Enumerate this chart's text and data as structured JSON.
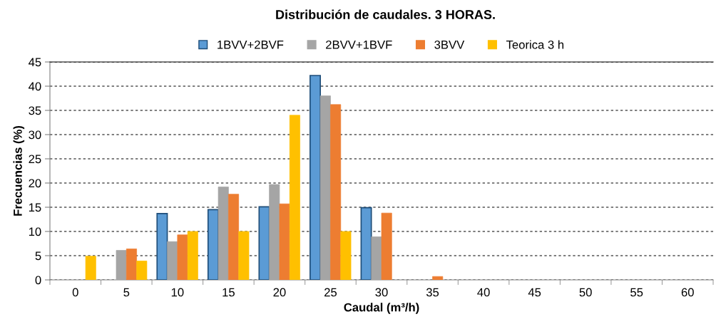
{
  "chart_data": {
    "type": "bar",
    "title": "Distribución de caudales. 3 HORAS.",
    "xlabel": "Caudal (m³/h)",
    "ylabel": "Frecuencias (%)",
    "categories": [
      "0",
      "5",
      "10",
      "15",
      "20",
      "25",
      "30",
      "35",
      "40",
      "45",
      "50",
      "55",
      "60"
    ],
    "series": [
      {
        "name": "1BVV+2BVF",
        "color": "#5b9bd5",
        "values": [
          0,
          0,
          13.7,
          14.5,
          15.1,
          42.2,
          14.9,
          0,
          0,
          0,
          0,
          0,
          0
        ]
      },
      {
        "name": "2BVV+1BVF",
        "color": "#a5a5a5",
        "values": [
          0,
          6.1,
          7.9,
          19.2,
          19.7,
          38,
          8.9,
          0,
          0,
          0,
          0,
          0,
          0
        ]
      },
      {
        "name": "3BVV",
        "color": "#ed7d31",
        "values": [
          0,
          6.4,
          9.3,
          17.7,
          15.7,
          36.2,
          13.8,
          0.7,
          0,
          0,
          0,
          0,
          0
        ]
      },
      {
        "name": "Teorica 3 h",
        "color": "#ffc000",
        "values": [
          4.9,
          3.9,
          10,
          10,
          34,
          10,
          0,
          0,
          0,
          0,
          0,
          0,
          0
        ]
      }
    ],
    "ylim": [
      0,
      45
    ],
    "yticks": [
      0,
      5,
      10,
      15,
      20,
      25,
      30,
      35,
      40,
      45
    ],
    "grid": "y",
    "legend": "top"
  }
}
